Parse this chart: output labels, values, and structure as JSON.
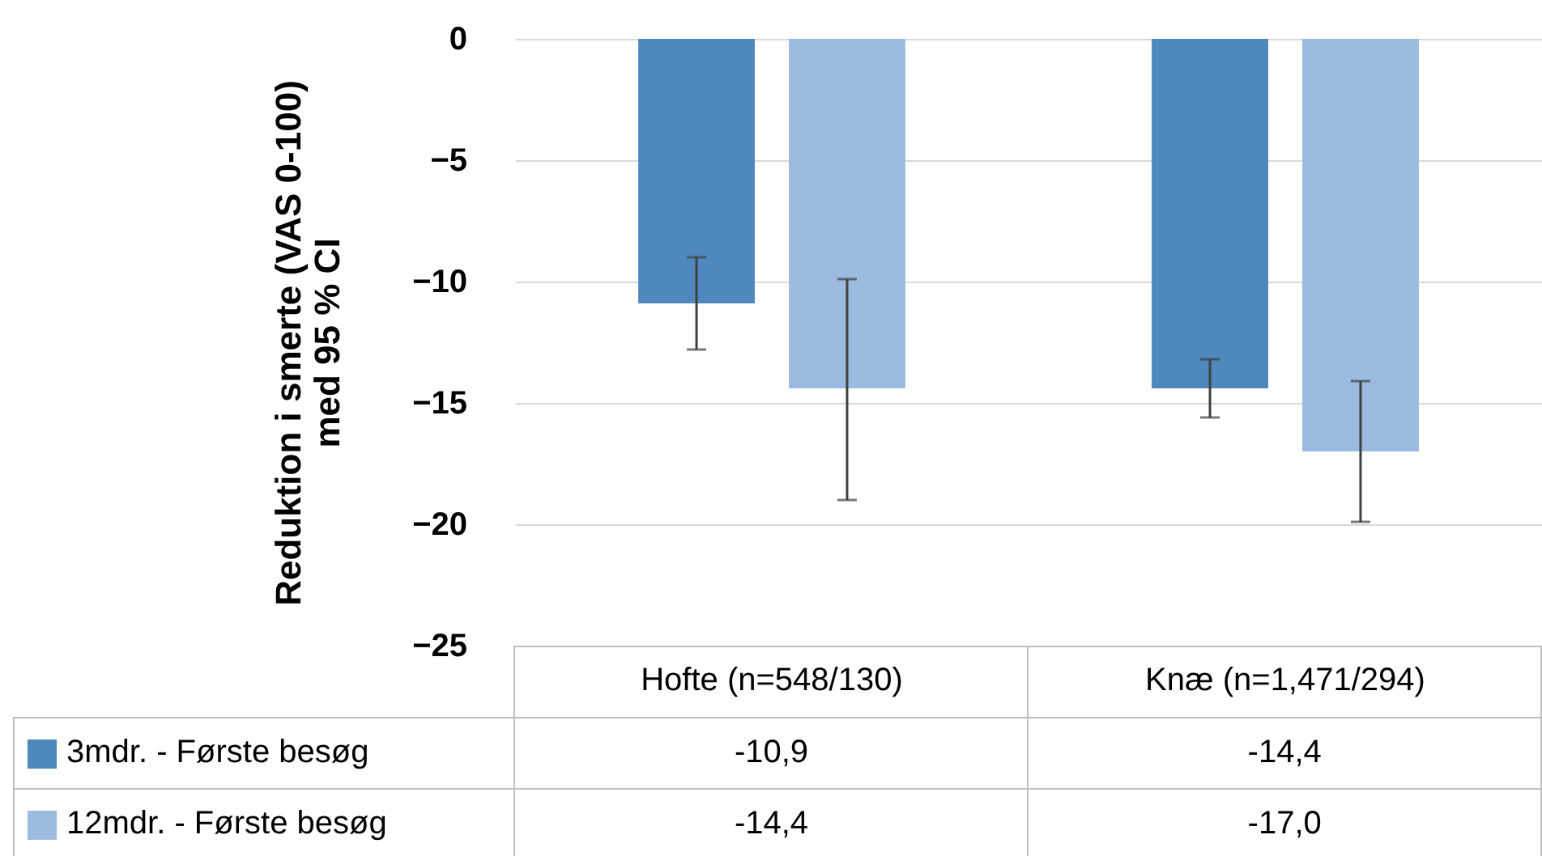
{
  "chart_data": {
    "type": "bar",
    "ylabel": "Reduktion i smerte (VAS 0-100)\nmed 95 % CI",
    "categories": [
      "Hofte (n=548/130)",
      "Knæ (n=1,471/294)"
    ],
    "series": [
      {
        "name": "3mdr. - Første besøg",
        "color": "#4f88bd",
        "values": [
          -10.9,
          -14.4
        ],
        "errors": [
          [
            -12.8,
            -9.0
          ],
          [
            -15.6,
            -13.2
          ]
        ],
        "value_labels": [
          "-10,9",
          "-14,4"
        ]
      },
      {
        "name": "12mdr. - Første besøg",
        "color": "#9bbbe0",
        "values": [
          -14.4,
          -17.0
        ],
        "errors": [
          [
            -19.0,
            -9.9
          ],
          [
            -19.9,
            -14.1
          ]
        ],
        "value_labels": [
          "-14,4",
          "-17,0"
        ]
      }
    ],
    "ylim": [
      -25,
      0
    ],
    "yticks": [
      -25,
      -20,
      -15,
      -10,
      -5,
      0
    ],
    "grid": "y",
    "legend": "bottom left"
  }
}
